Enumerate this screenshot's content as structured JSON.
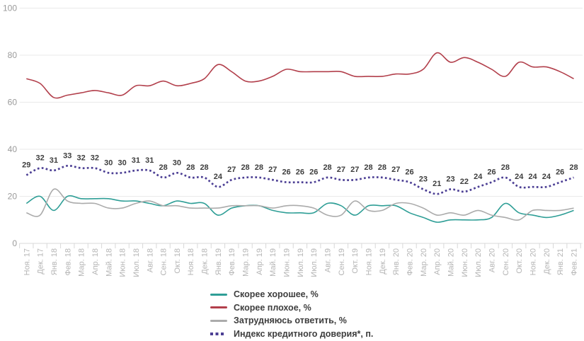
{
  "chart_data": {
    "type": "line",
    "title": "",
    "categories": [
      "Ноя. 17",
      "Дек. 17",
      "Янв. 18",
      "Фев. 18",
      "Мар. 18",
      "Апр. 18",
      "Май. 18",
      "Июн. 18",
      "Июл. 18",
      "Авг. 18",
      "Сен. 18",
      "Окт. 18",
      "Ноя. 18",
      "Дек. 18",
      "Янв. 19",
      "Фев. 19",
      "Мар. 19",
      "Апр. 19",
      "Май. 19",
      "Июн. 19",
      "Июл. 19",
      "Июл. 19",
      "Авг. 19",
      "Сен. 19",
      "Окт. 19",
      "Ноя. 19",
      "Дек. 19",
      "Янв. 20",
      "Фев. 20",
      "Мар. 20",
      "Апр. 20",
      "Май. 20",
      "Июн. 20",
      "Июл. 20",
      "Авг. 20",
      "Сен. 20",
      "Окт. 20",
      "Ноя. 20",
      "Дек. 20",
      "Янв. 21",
      "Фев. 21"
    ],
    "series": [
      {
        "id": "good",
        "name": "Скорее хорошее, %",
        "color": "#2E9E96",
        "style": "solid",
        "data_labels": false,
        "values": [
          17,
          20,
          14,
          20,
          19,
          19,
          19,
          18,
          18,
          17,
          16,
          18,
          17,
          17,
          12,
          15,
          16,
          16,
          14,
          13,
          13,
          13,
          17,
          16,
          12,
          16,
          16,
          16,
          13,
          11,
          9,
          10,
          10,
          10,
          11,
          17,
          13,
          12,
          11,
          12,
          14
        ]
      },
      {
        "id": "bad",
        "name": "Скорее плохое, %",
        "color": "#B23F4B",
        "style": "solid",
        "data_labels": false,
        "values": [
          70,
          68,
          62,
          63,
          64,
          65,
          64,
          63,
          67,
          67,
          69,
          67,
          68,
          70,
          76,
          73,
          69,
          69,
          71,
          74,
          73,
          73,
          73,
          73,
          71,
          71,
          71,
          72,
          72,
          74,
          81,
          77,
          79,
          77,
          74,
          71,
          77,
          75,
          75,
          73,
          70
        ]
      },
      {
        "id": "difficult",
        "name": "Затрудняюсь ответить, %",
        "color": "#ABABAB",
        "style": "solid",
        "data_labels": false,
        "values": [
          13,
          12,
          23,
          18,
          17,
          17,
          15,
          15,
          17,
          18,
          16,
          16,
          15,
          15,
          15,
          16,
          16,
          16,
          15,
          16,
          16,
          15,
          12,
          12,
          18,
          14,
          14,
          17,
          17,
          15,
          12,
          13,
          12,
          14,
          12,
          11,
          10,
          14,
          14,
          14,
          15
        ]
      },
      {
        "id": "index",
        "name": "Индекс кредитного доверия*, п.",
        "color": "#4C3F94",
        "style": "dotted",
        "data_labels": true,
        "values": [
          29,
          32,
          31,
          33,
          32,
          32,
          30,
          30,
          31,
          31,
          28,
          30,
          28,
          28,
          24,
          27,
          28,
          28,
          27,
          26,
          26,
          26,
          28,
          27,
          27,
          28,
          28,
          27,
          26,
          23,
          21,
          23,
          22,
          24,
          26,
          28,
          24,
          24,
          24,
          26,
          28
        ]
      }
    ],
    "ylim": [
      0,
      100
    ],
    "yticks": [
      0,
      20,
      40,
      60,
      80,
      100
    ],
    "grid": true,
    "legend_position": "bottom-center"
  },
  "colors": {
    "background": "#ffffff",
    "gridline": "#eaeaea",
    "axis_line": "#d8d8d8",
    "y_tick_text": "#9a9a9a",
    "x_tick_text": "#b5b5b5",
    "data_label_text": "#3d3d3d",
    "legend_text": "#3d3d3d"
  }
}
